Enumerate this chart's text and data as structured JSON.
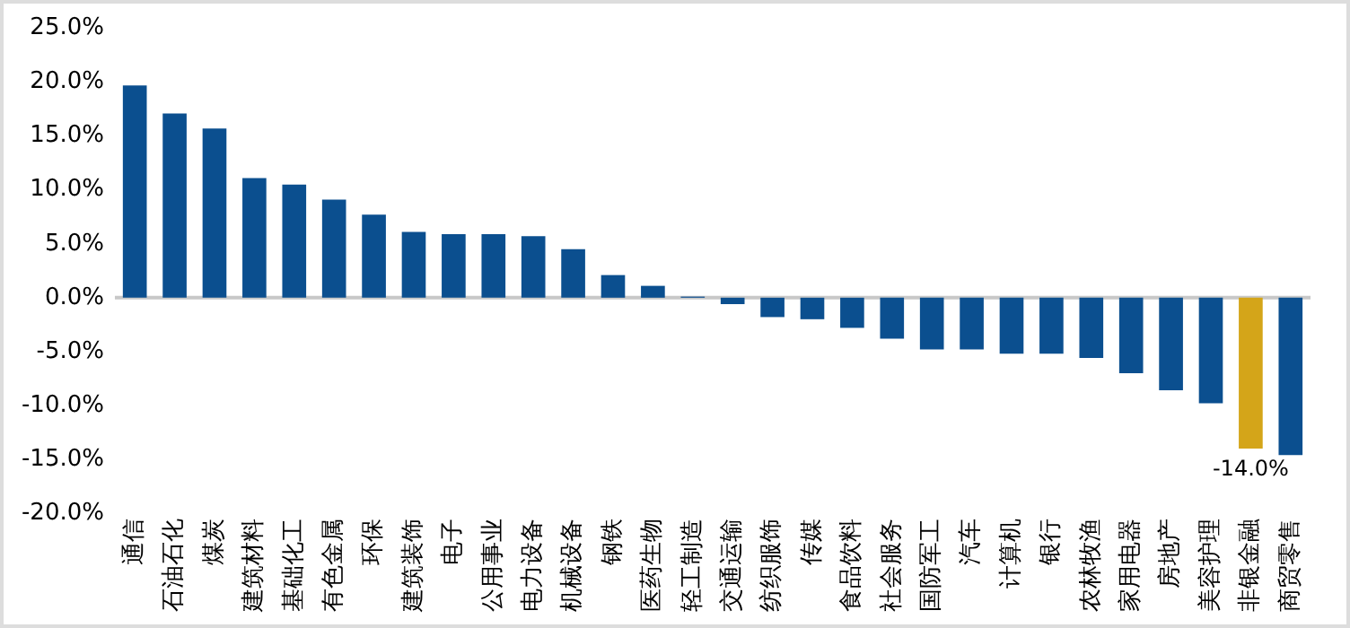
{
  "chart_data": {
    "type": "bar",
    "categories": [
      "通信",
      "石油石化",
      "煤炭",
      "建筑材料",
      "基础化工",
      "有色金属",
      "环保",
      "建筑装饰",
      "电子",
      "公用事业",
      "电力设备",
      "机械设备",
      "钢铁",
      "医药生物",
      "轻工制造",
      "交通运输",
      "纺织服饰",
      "传媒",
      "食品饮料",
      "社会服务",
      "国防军工",
      "汽车",
      "计算机",
      "银行",
      "农林牧渔",
      "家用电器",
      "房地产",
      "美容护理",
      "非银金融",
      "商贸零售"
    ],
    "values": [
      19.7,
      17.1,
      15.7,
      11.1,
      10.5,
      9.1,
      7.7,
      6.1,
      5.9,
      5.9,
      5.7,
      4.5,
      2.1,
      1.1,
      0.1,
      -0.6,
      -1.8,
      -2.0,
      -2.8,
      -3.8,
      -4.8,
      -4.8,
      -5.2,
      -5.2,
      -5.6,
      -7.0,
      -8.6,
      -9.8,
      -14.0,
      -14.6
    ],
    "colors": [
      "#0b4f8f",
      "#0b4f8f",
      "#0b4f8f",
      "#0b4f8f",
      "#0b4f8f",
      "#0b4f8f",
      "#0b4f8f",
      "#0b4f8f",
      "#0b4f8f",
      "#0b4f8f",
      "#0b4f8f",
      "#0b4f8f",
      "#0b4f8f",
      "#0b4f8f",
      "#0b4f8f",
      "#0b4f8f",
      "#0b4f8f",
      "#0b4f8f",
      "#0b4f8f",
      "#0b4f8f",
      "#0b4f8f",
      "#0b4f8f",
      "#0b4f8f",
      "#0b4f8f",
      "#0b4f8f",
      "#0b4f8f",
      "#0b4f8f",
      "#0b4f8f",
      "#d4a519",
      "#0b4f8f"
    ],
    "value_labels": [
      null,
      null,
      null,
      null,
      null,
      null,
      null,
      null,
      null,
      null,
      null,
      null,
      null,
      null,
      null,
      null,
      null,
      null,
      null,
      null,
      null,
      null,
      null,
      null,
      null,
      null,
      null,
      null,
      "-14.0%",
      null
    ],
    "ylim": [
      -20,
      25
    ],
    "yticks": [
      {
        "value": -20,
        "label": "-20.0%"
      },
      {
        "value": -15,
        "label": "-15.0%"
      },
      {
        "value": -10,
        "label": "-10.0%"
      },
      {
        "value": -5,
        "label": "-5.0%"
      },
      {
        "value": 0,
        "label": "0.0%"
      },
      {
        "value": 5,
        "label": "5.0%"
      },
      {
        "value": 10,
        "label": "10.0%"
      },
      {
        "value": 15,
        "label": "15.0%"
      },
      {
        "value": 20,
        "label": "20.0%"
      },
      {
        "value": 25,
        "label": "25.0%"
      }
    ],
    "ref_lines": [
      {
        "axis": "y",
        "value": 0,
        "color": "#c8c8c8"
      }
    ],
    "grid": false,
    "legend": false
  }
}
